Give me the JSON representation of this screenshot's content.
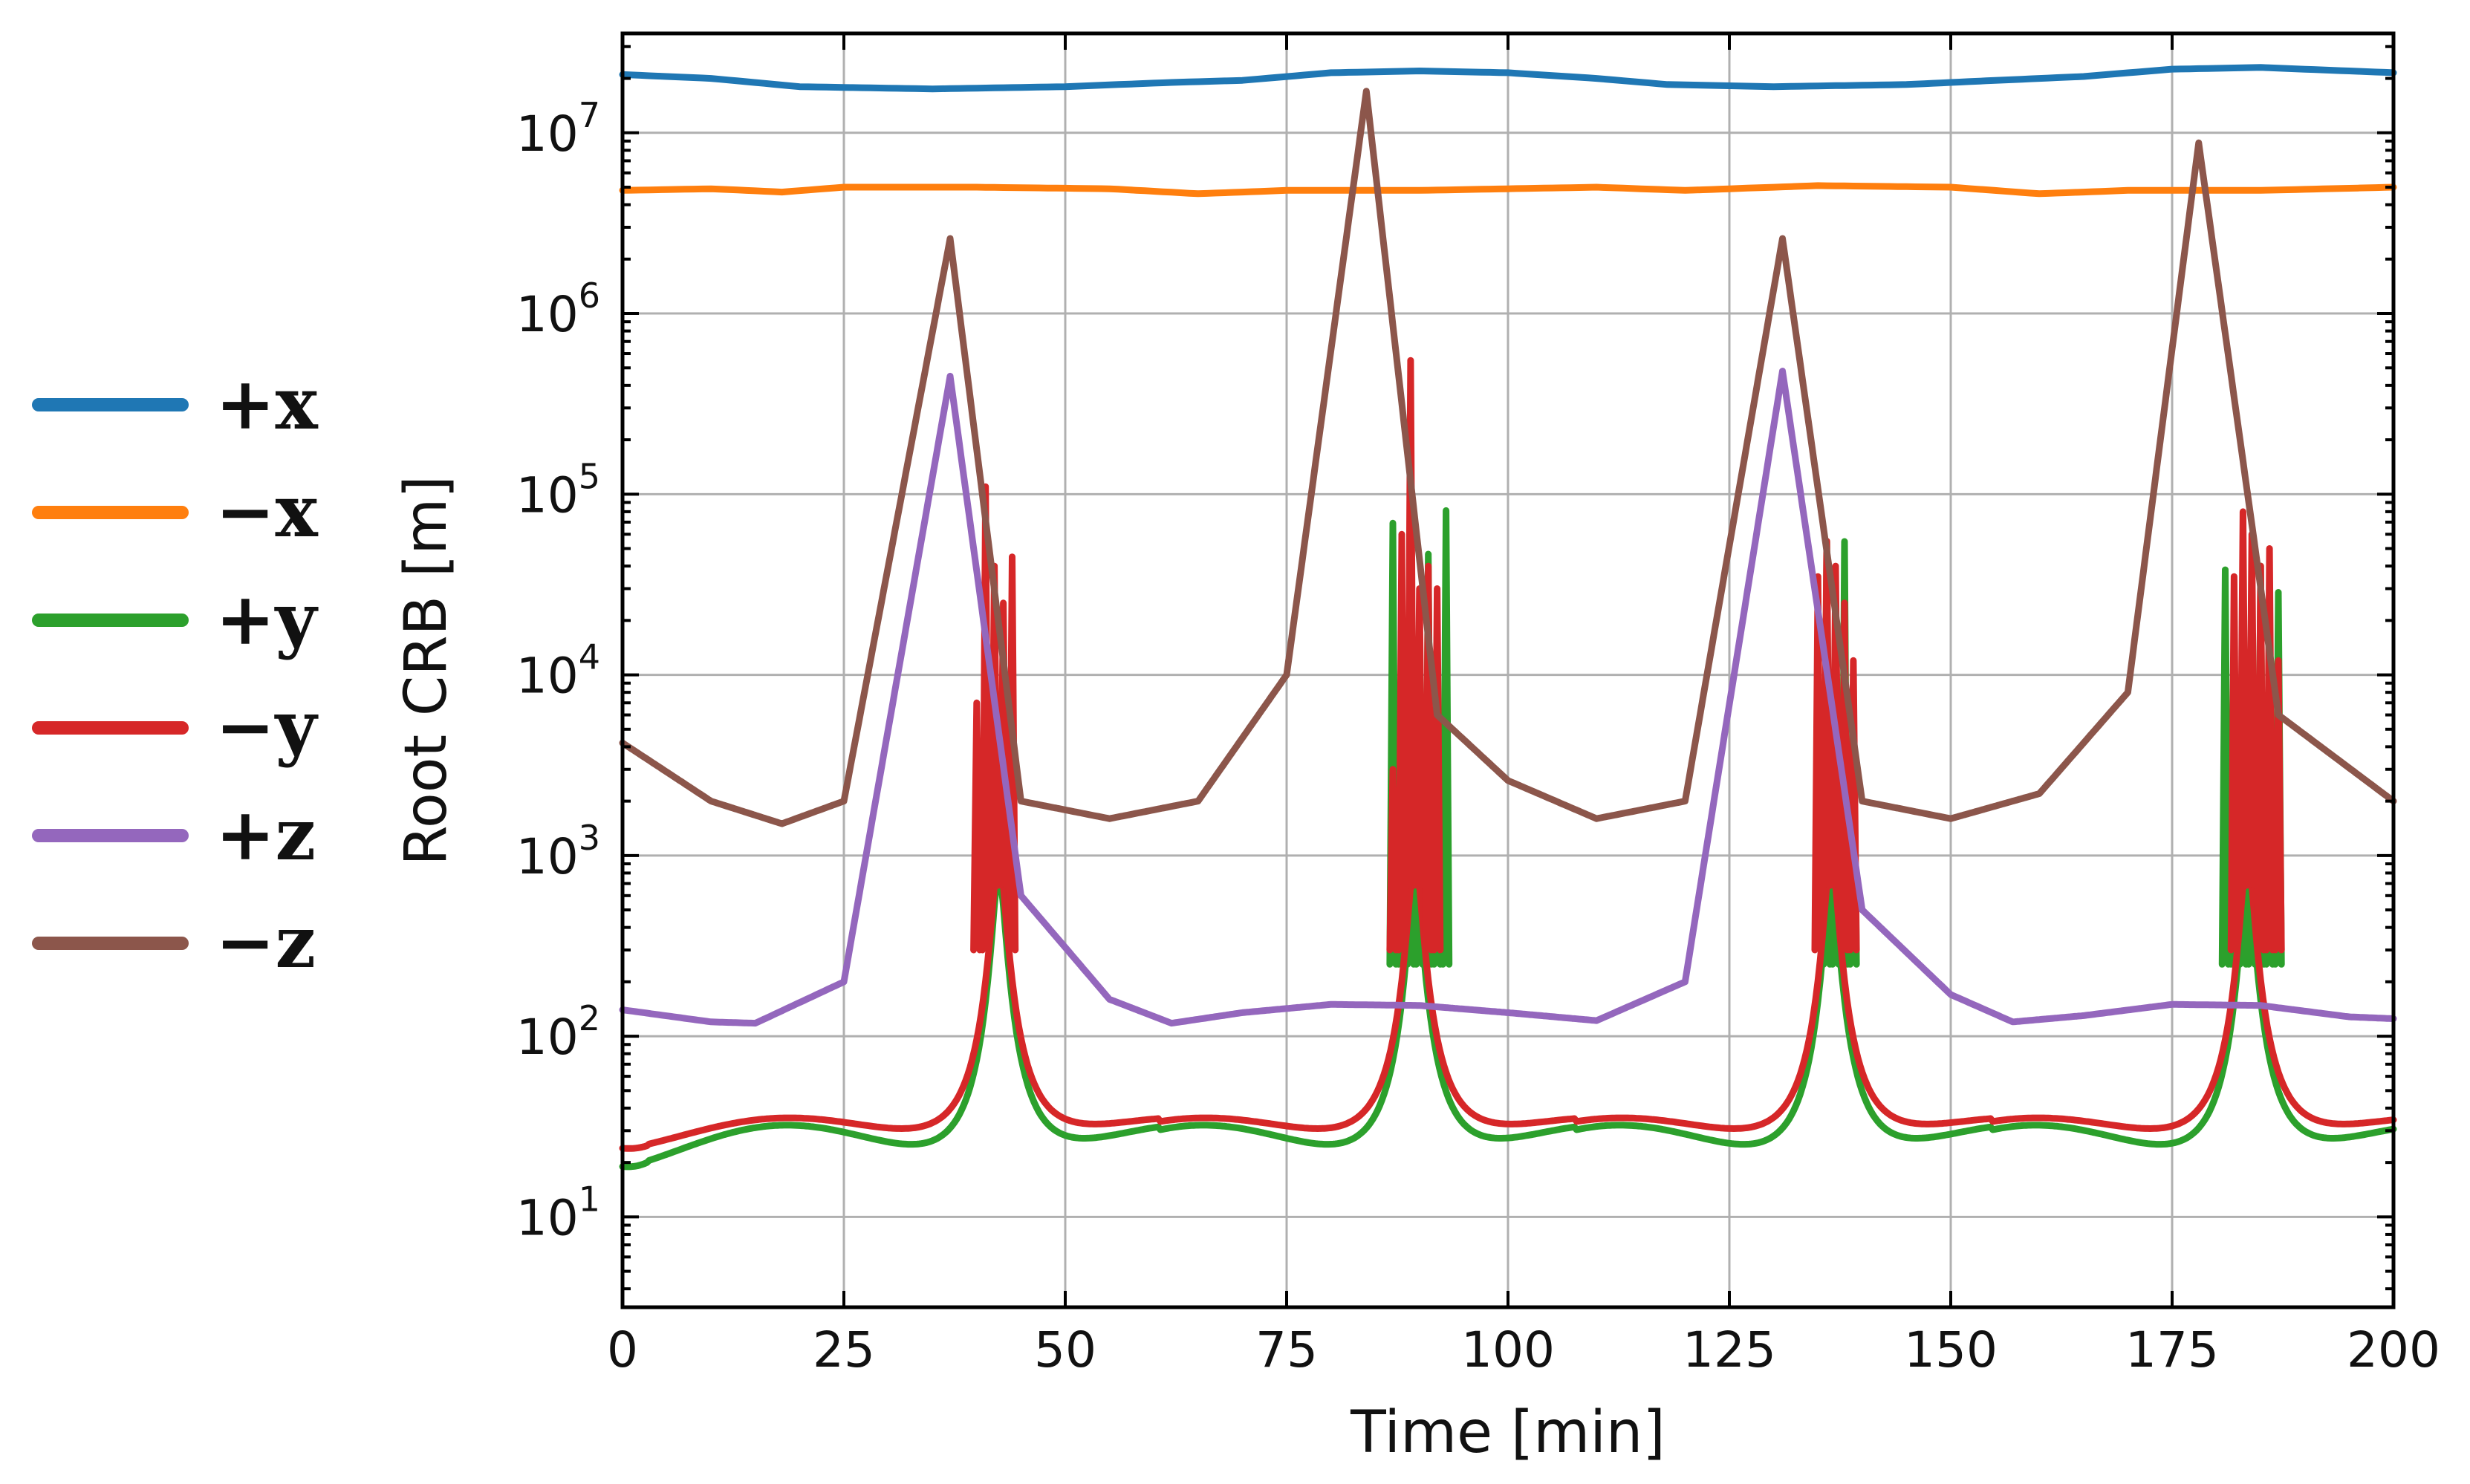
{
  "chart_data": {
    "type": "line",
    "title": "",
    "xlabel": "Time [min]",
    "ylabel": "Root CRB [m]",
    "xlim": [
      0,
      200
    ],
    "ylim_log10": [
      0.5,
      7.55
    ],
    "yscale": "log",
    "grid": true,
    "legend_position": "left-outside",
    "x_ticks": [
      0,
      25,
      50,
      75,
      100,
      125,
      150,
      175,
      200
    ],
    "x_tick_labels": [
      "0",
      "25",
      "50",
      "75",
      "100",
      "125",
      "150",
      "175",
      "200"
    ],
    "y_ticks_exp": [
      1,
      2,
      3,
      4,
      5,
      6,
      7
    ],
    "y_tick_base": "10",
    "peaks": [
      37,
      84,
      131,
      178
    ],
    "series": [
      {
        "name": "+x",
        "color": "#1f77b4",
        "x": [
          0,
          10,
          20,
          35,
          50,
          62,
          70,
          80,
          90,
          100,
          110,
          118,
          130,
          145,
          155,
          165,
          175,
          185,
          200
        ],
        "y": [
          21000000,
          20000000,
          18000000,
          17500000,
          18000000,
          19000000,
          19500000,
          21500000,
          22000000,
          21500000,
          20000000,
          18500000,
          18000000,
          18500000,
          19500000,
          20500000,
          22500000,
          23000000,
          21500000
        ]
      },
      {
        "name": "-x",
        "color": "#ff7f0e",
        "x": [
          0,
          10,
          18,
          25,
          40,
          55,
          65,
          75,
          90,
          100,
          110,
          120,
          135,
          150,
          160,
          170,
          185,
          200
        ],
        "y": [
          4800000,
          4900000,
          4700000,
          5000000,
          5000000,
          4900000,
          4600000,
          4800000,
          4800000,
          4900000,
          5000000,
          4800000,
          5100000,
          5000000,
          4600000,
          4800000,
          4800000,
          5000000
        ]
      },
      {
        "name": "+y",
        "color": "#2ca02c",
        "base": [
          19,
          31,
          17
        ],
        "bursts": [
          [
            42,
            91,
            92
          ],
          [
            89,
            87,
            88,
            89,
            90,
            91,
            92,
            93
          ],
          [
            137,
            136,
            137,
            138,
            139
          ],
          [
            184,
            181,
            182,
            183,
            184,
            185,
            186,
            187
          ]
        ],
        "burst_values": [
          30000,
          90000,
          55000,
          50000
        ]
      },
      {
        "name": "-y",
        "color": "#d62728",
        "base": [
          24,
          34,
          22
        ],
        "burst_peaks": [
          [
            40,
            7000
          ],
          [
            41,
            110000
          ],
          [
            42,
            40000
          ],
          [
            43,
            25000
          ],
          [
            44,
            45000
          ],
          [
            87,
            3000
          ],
          [
            88,
            60000
          ],
          [
            89,
            550000
          ],
          [
            90,
            30000
          ],
          [
            91,
            40000
          ],
          [
            92,
            30000
          ],
          [
            135,
            35000
          ],
          [
            136,
            55000
          ],
          [
            137,
            40000
          ],
          [
            138,
            25000
          ],
          [
            139,
            12000
          ],
          [
            182,
            35000
          ],
          [
            183,
            80000
          ],
          [
            184,
            60000
          ],
          [
            185,
            40000
          ],
          [
            186,
            50000
          ],
          [
            187,
            12000
          ]
        ]
      },
      {
        "name": "+z",
        "color": "#9467bd",
        "base_points": [
          [
            0,
            140
          ],
          [
            10,
            120
          ],
          [
            15,
            118
          ],
          [
            25,
            200
          ],
          [
            37,
            450000
          ],
          [
            45,
            600
          ],
          [
            55,
            160
          ],
          [
            62,
            118
          ],
          [
            70,
            135
          ],
          [
            80,
            150
          ],
          [
            90,
            148
          ],
          [
            100,
            135
          ],
          [
            110,
            122
          ],
          [
            120,
            200
          ],
          [
            131,
            480000
          ],
          [
            140,
            500
          ],
          [
            150,
            170
          ],
          [
            157,
            120
          ],
          [
            165,
            130
          ],
          [
            175,
            150
          ],
          [
            185,
            148
          ],
          [
            195,
            128
          ],
          [
            200,
            125
          ]
        ]
      },
      {
        "name": "-z",
        "color": "#8c564b",
        "base_points": [
          [
            0,
            4200
          ],
          [
            10,
            2000
          ],
          [
            18,
            1500
          ],
          [
            25,
            2000
          ],
          [
            37,
            2600000
          ],
          [
            45,
            2000
          ],
          [
            55,
            1600
          ],
          [
            65,
            2000
          ],
          [
            75,
            10000
          ],
          [
            84,
            17000000
          ],
          [
            92,
            6000
          ],
          [
            100,
            2600
          ],
          [
            110,
            1600
          ],
          [
            120,
            2000
          ],
          [
            131,
            2600000
          ],
          [
            140,
            2000
          ],
          [
            150,
            1600
          ],
          [
            160,
            2200
          ],
          [
            170,
            8000
          ],
          [
            178,
            8800000
          ],
          [
            187,
            6000
          ],
          [
            200,
            2000
          ]
        ]
      }
    ]
  },
  "legend": {
    "items": [
      {
        "label": "+x",
        "color": "#1f77b4"
      },
      {
        "label": "−x",
        "color": "#ff7f0e"
      },
      {
        "label": "+y",
        "color": "#2ca02c"
      },
      {
        "label": "−y",
        "color": "#d62728"
      },
      {
        "label": "+z",
        "color": "#9467bd"
      },
      {
        "label": "−z",
        "color": "#8c564b"
      }
    ]
  }
}
